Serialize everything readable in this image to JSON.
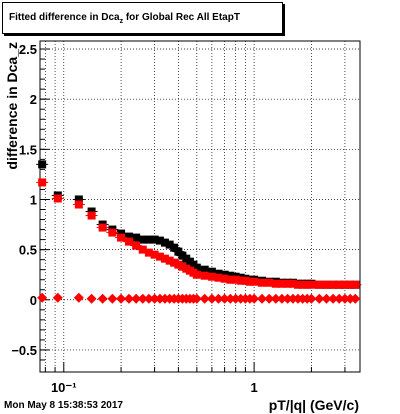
{
  "title": {
    "main": "Fitted difference in Dca",
    "sub": "z",
    "tail": " for Global Rec All EtapT"
  },
  "footer": "Mon May  8 15:38:53 2017",
  "chart_data": {
    "type": "scatter",
    "title": "Fitted difference in Dca_z for Global Rec All EtapT",
    "xlabel": "pT/|q| (GeV/c)",
    "ylabel": "difference in Dca_z",
    "x_scale": "log",
    "xlim": [
      0.075,
      3.6
    ],
    "ylim": [
      -0.72,
      2.58
    ],
    "grid": true,
    "y_ticks": [
      -0.5,
      0,
      0.5,
      1,
      1.5,
      2,
      2.5
    ],
    "y_tick_labels": [
      "−0.5",
      "0",
      "0.5",
      "1",
      "1.5",
      "2",
      "2.5"
    ],
    "x_ticks": [
      0.1,
      1
    ],
    "x_tick_labels": [
      "10⁻¹",
      "1"
    ],
    "series": [
      {
        "color": "#000000",
        "marker": "square",
        "x": [
          0.077,
          0.093,
          0.12,
          0.14,
          0.16,
          0.18,
          0.2,
          0.22,
          0.24,
          0.26,
          0.28,
          0.3,
          0.32,
          0.34,
          0.36,
          0.38,
          0.4,
          0.42,
          0.44,
          0.46,
          0.48,
          0.5,
          0.55,
          0.6,
          0.65,
          0.7,
          0.75,
          0.8,
          0.85,
          0.9,
          0.95,
          1.0,
          1.1,
          1.2,
          1.3,
          1.4,
          1.5,
          1.6,
          1.7,
          1.8,
          1.9,
          2.0,
          2.2,
          2.4,
          2.6,
          2.8,
          3.0,
          3.2,
          3.4
        ],
        "y": [
          1.35,
          1.04,
          1.0,
          0.88,
          0.75,
          0.7,
          0.66,
          0.63,
          0.62,
          0.6,
          0.6,
          0.6,
          0.59,
          0.57,
          0.55,
          0.52,
          0.48,
          0.44,
          0.41,
          0.38,
          0.35,
          0.32,
          0.3,
          0.28,
          0.26,
          0.25,
          0.24,
          0.23,
          0.22,
          0.21,
          0.2,
          0.2,
          0.19,
          0.18,
          0.18,
          0.17,
          0.17,
          0.17,
          0.16,
          0.16,
          0.16,
          0.16,
          0.15,
          0.15,
          0.15,
          0.15,
          0.15,
          0.15,
          0.15
        ]
      },
      {
        "color": "#ff0000",
        "marker": "square",
        "x": [
          0.077,
          0.093,
          0.12,
          0.14,
          0.16,
          0.18,
          0.2,
          0.22,
          0.24,
          0.26,
          0.28,
          0.3,
          0.32,
          0.34,
          0.36,
          0.38,
          0.4,
          0.42,
          0.44,
          0.46,
          0.48,
          0.5,
          0.55,
          0.6,
          0.65,
          0.7,
          0.75,
          0.8,
          0.85,
          0.9,
          0.95,
          1.0,
          1.1,
          1.2,
          1.3,
          1.4,
          1.5,
          1.6,
          1.7,
          1.8,
          1.9,
          2.0,
          2.2,
          2.4,
          2.6,
          2.8,
          3.0,
          3.2,
          3.4
        ],
        "y": [
          1.17,
          1.01,
          0.95,
          0.84,
          0.72,
          0.67,
          0.62,
          0.58,
          0.54,
          0.5,
          0.47,
          0.45,
          0.43,
          0.41,
          0.39,
          0.37,
          0.35,
          0.33,
          0.31,
          0.29,
          0.27,
          0.25,
          0.24,
          0.23,
          0.22,
          0.21,
          0.2,
          0.2,
          0.19,
          0.19,
          0.18,
          0.18,
          0.17,
          0.17,
          0.16,
          0.16,
          0.16,
          0.16,
          0.15,
          0.15,
          0.15,
          0.15,
          0.15,
          0.15,
          0.15,
          0.15,
          0.15,
          0.15,
          0.15
        ]
      },
      {
        "color": "#ff0000",
        "marker": "diamond",
        "x": [
          0.077,
          0.093,
          0.12,
          0.14,
          0.16,
          0.18,
          0.2,
          0.22,
          0.24,
          0.26,
          0.28,
          0.3,
          0.32,
          0.34,
          0.36,
          0.38,
          0.4,
          0.42,
          0.44,
          0.46,
          0.48,
          0.5,
          0.55,
          0.6,
          0.65,
          0.7,
          0.75,
          0.8,
          0.85,
          0.9,
          0.95,
          1.0,
          1.1,
          1.2,
          1.3,
          1.4,
          1.5,
          1.6,
          1.7,
          1.8,
          1.9,
          2.0,
          2.2,
          2.4,
          2.6,
          2.8,
          3.0,
          3.2,
          3.4
        ],
        "y": [
          0.02,
          0.02,
          0.02,
          0.01,
          0.01,
          0.01,
          0.01,
          0.01,
          0.01,
          0.01,
          0.01,
          0.01,
          0.01,
          0.01,
          0.01,
          0.01,
          0.01,
          0.01,
          0.01,
          0.01,
          0.01,
          0.01,
          0.01,
          0.01,
          0.01,
          0.01,
          0.01,
          0.01,
          0.01,
          0.01,
          0.01,
          0.01,
          0.01,
          0.01,
          0.01,
          0.01,
          0.01,
          0.01,
          0.01,
          0.01,
          0.01,
          0.01,
          0.01,
          0.01,
          0.01,
          0.01,
          0.01,
          0.01,
          0.01
        ]
      }
    ]
  }
}
